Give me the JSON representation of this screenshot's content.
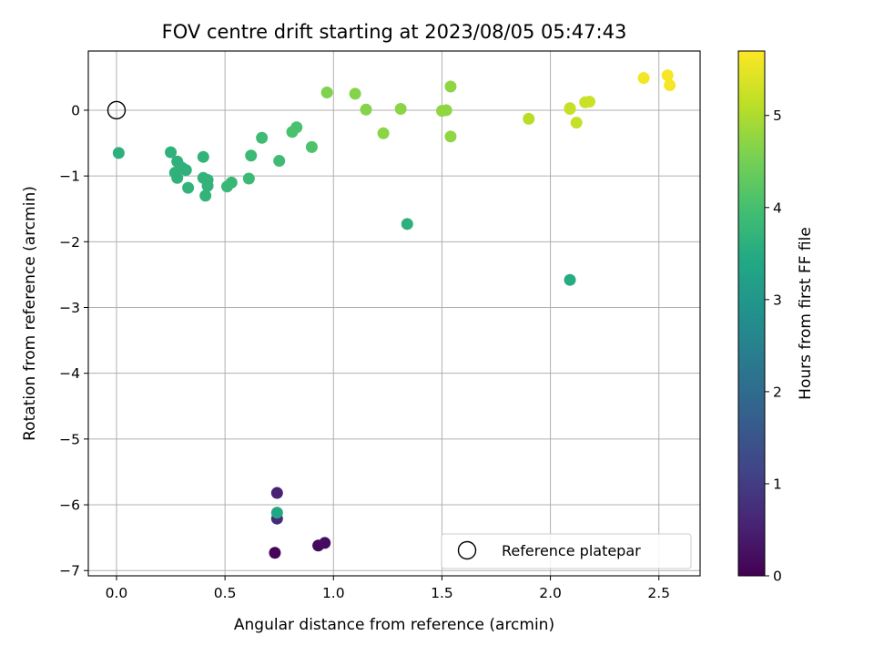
{
  "chart_data": {
    "type": "scatter",
    "title": "FOV centre drift starting at 2023/08/05 05:47:43",
    "xlabel": "Angular distance from reference (arcmin)",
    "ylabel": "Rotation from reference (arcmin)",
    "xlim": [
      -0.13,
      2.69
    ],
    "ylim": [
      -7.08,
      0.9
    ],
    "xticks": [
      0.0,
      0.5,
      1.0,
      1.5,
      2.0,
      2.5
    ],
    "xtick_labels": [
      "0.0",
      "0.5",
      "1.0",
      "1.5",
      "2.0",
      "2.5"
    ],
    "yticks": [
      0,
      -1,
      -2,
      -3,
      -4,
      -5,
      -6,
      -7
    ],
    "ytick_labels": [
      "0",
      "−1",
      "−2",
      "−3",
      "−4",
      "−5",
      "−6",
      "−7"
    ],
    "grid": true,
    "colormap": "viridis",
    "colorbar": {
      "label": "Hours from first FF file",
      "range": [
        0,
        5.7
      ],
      "ticks": [
        0,
        1,
        2,
        3,
        4,
        5
      ],
      "tick_labels": [
        "0",
        "1",
        "2",
        "3",
        "4",
        "5"
      ]
    },
    "reference_point": {
      "x": 0.0,
      "y": 0.0,
      "label": "Reference platepar"
    },
    "legend": {
      "placement": "lower-right",
      "entries": [
        "Reference platepar"
      ]
    },
    "points": [
      {
        "x": 0.73,
        "y": -6.73,
        "t": 0.05
      },
      {
        "x": 0.93,
        "y": -6.62,
        "t": 0.15
      },
      {
        "x": 0.96,
        "y": -6.58,
        "t": 0.2
      },
      {
        "x": 0.74,
        "y": -5.82,
        "t": 0.55
      },
      {
        "x": 0.74,
        "y": -6.21,
        "t": 0.7
      },
      {
        "x": 0.74,
        "y": -6.12,
        "t": 3.4
      },
      {
        "x": 2.09,
        "y": -2.58,
        "t": 3.5
      },
      {
        "x": 1.34,
        "y": -1.73,
        "t": 3.6
      },
      {
        "x": 0.01,
        "y": -0.65,
        "t": 3.6
      },
      {
        "x": 0.25,
        "y": -0.64,
        "t": 3.65
      },
      {
        "x": 0.28,
        "y": -0.78,
        "t": 3.65
      },
      {
        "x": 0.27,
        "y": -0.95,
        "t": 3.65
      },
      {
        "x": 0.28,
        "y": -1.03,
        "t": 3.65
      },
      {
        "x": 0.3,
        "y": -0.87,
        "t": 3.65
      },
      {
        "x": 0.32,
        "y": -0.91,
        "t": 3.65
      },
      {
        "x": 0.33,
        "y": -1.18,
        "t": 3.7
      },
      {
        "x": 0.4,
        "y": -0.71,
        "t": 3.7
      },
      {
        "x": 0.4,
        "y": -1.03,
        "t": 3.7
      },
      {
        "x": 0.42,
        "y": -1.06,
        "t": 3.7
      },
      {
        "x": 0.42,
        "y": -1.15,
        "t": 3.7
      },
      {
        "x": 0.41,
        "y": -1.3,
        "t": 3.7
      },
      {
        "x": 0.51,
        "y": -1.16,
        "t": 3.8
      },
      {
        "x": 0.53,
        "y": -1.1,
        "t": 3.8
      },
      {
        "x": 0.61,
        "y": -1.04,
        "t": 3.85
      },
      {
        "x": 0.62,
        "y": -0.69,
        "t": 3.85
      },
      {
        "x": 0.67,
        "y": -0.42,
        "t": 3.9
      },
      {
        "x": 0.75,
        "y": -0.77,
        "t": 3.9
      },
      {
        "x": 0.81,
        "y": -0.33,
        "t": 4.05
      },
      {
        "x": 0.83,
        "y": -0.26,
        "t": 4.05
      },
      {
        "x": 0.9,
        "y": -0.56,
        "t": 4.1
      },
      {
        "x": 0.97,
        "y": 0.27,
        "t": 4.6
      },
      {
        "x": 1.1,
        "y": 0.25,
        "t": 4.65
      },
      {
        "x": 1.15,
        "y": 0.01,
        "t": 4.65
      },
      {
        "x": 1.23,
        "y": -0.35,
        "t": 4.7
      },
      {
        "x": 1.31,
        "y": 0.02,
        "t": 4.7
      },
      {
        "x": 1.5,
        "y": -0.01,
        "t": 4.75
      },
      {
        "x": 1.52,
        "y": 0.0,
        "t": 4.75
      },
      {
        "x": 1.54,
        "y": 0.36,
        "t": 4.75
      },
      {
        "x": 1.54,
        "y": -0.4,
        "t": 4.75
      },
      {
        "x": 1.9,
        "y": -0.13,
        "t": 5.1
      },
      {
        "x": 2.09,
        "y": 0.03,
        "t": 5.15
      },
      {
        "x": 2.09,
        "y": 0.02,
        "t": 5.2
      },
      {
        "x": 2.12,
        "y": -0.19,
        "t": 5.2
      },
      {
        "x": 2.16,
        "y": 0.12,
        "t": 5.25
      },
      {
        "x": 2.18,
        "y": 0.13,
        "t": 5.25
      },
      {
        "x": 2.43,
        "y": 0.49,
        "t": 5.6
      },
      {
        "x": 2.54,
        "y": 0.53,
        "t": 5.65
      },
      {
        "x": 2.55,
        "y": 0.38,
        "t": 5.65
      }
    ]
  }
}
